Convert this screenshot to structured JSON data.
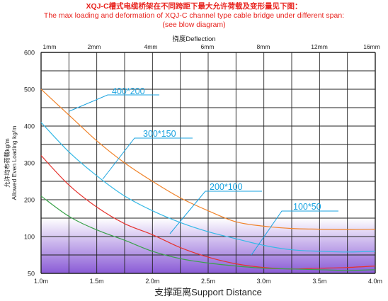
{
  "title_lines": [
    "XQJ-C槽式电缆桥架在不同跨距下最大允许荷载及变形量见下图：",
    "The max loading and deformation of XQJ-C channel type cable bridge under different span:",
    "(see blow diagram)"
  ],
  "colors": {
    "title": "#e8231e",
    "grid": "#222222",
    "band_top": "#ffffff",
    "band_bottom": "#8a5bd6",
    "callout": "#1aa3e0"
  },
  "chart_data": {
    "type": "line",
    "xlabel": "支撑距离Support Distance",
    "ylabel_cn": "允许均布荷载kg/m",
    "ylabel_en": "Allowed Even Loading kg/m",
    "top_axis_title": "挠度Deflection",
    "top_ticks": [
      "1mm",
      "2mm",
      "4mm",
      "6mm",
      "8mm",
      "12mm",
      "16mm"
    ],
    "x_ticks": [
      "1.0m",
      "1.5m",
      "2.0m",
      "2.5m",
      "3.0m",
      "3.5m",
      "4.0m"
    ],
    "y_ticks": [
      "600",
      "500",
      "400",
      "300",
      "200",
      "100",
      "50"
    ],
    "xlim": [
      1.0,
      4.0
    ],
    "ylim": [
      50,
      600
    ],
    "grid": true,
    "series": [
      {
        "name": "400*200",
        "color": "#f0832a",
        "x": [
          1.0,
          1.25,
          1.5,
          1.75,
          2.0,
          2.25,
          2.5,
          2.75,
          3.0,
          3.25,
          3.5,
          3.75,
          4.0
        ],
        "y": [
          500,
          430,
          360,
          300,
          250,
          205,
          170,
          140,
          128,
          122,
          120,
          119,
          120
        ]
      },
      {
        "name": "300*150",
        "color": "#35b9e6",
        "x": [
          1.0,
          1.25,
          1.5,
          1.75,
          2.0,
          2.25,
          2.5,
          2.75,
          3.0,
          3.25,
          3.5,
          3.75,
          4.0
        ],
        "y": [
          410,
          330,
          265,
          210,
          170,
          138,
          113,
          97,
          88,
          82,
          80,
          79,
          80
        ]
      },
      {
        "name": "200*100",
        "color": "#e5322d",
        "x": [
          1.0,
          1.25,
          1.5,
          1.75,
          2.0,
          2.25,
          2.5,
          2.75,
          3.0,
          3.25,
          3.5,
          3.75,
          4.0
        ],
        "y": [
          320,
          240,
          180,
          135,
          105,
          85,
          72,
          63,
          58,
          56,
          57,
          58,
          60
        ]
      },
      {
        "name": "100*50",
        "color": "#3aa24a",
        "x": [
          1.0,
          1.25,
          1.5,
          1.75,
          2.0,
          2.25,
          2.5,
          2.75,
          3.0,
          3.25,
          3.5,
          3.75,
          4.0
        ],
        "y": [
          210,
          155,
          118,
          95,
          80,
          70,
          64,
          60,
          57,
          56,
          55,
          54,
          55
        ]
      }
    ]
  }
}
